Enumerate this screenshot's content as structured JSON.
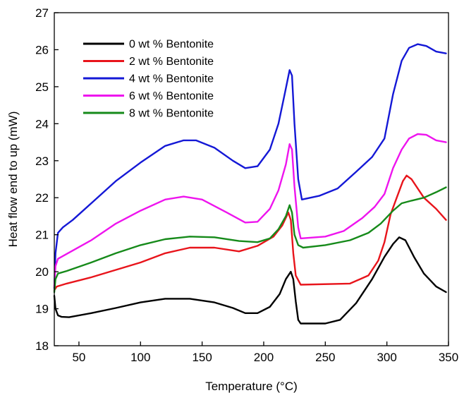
{
  "chart_data": {
    "type": "line",
    "xlabel": "Temperature (°C)",
    "ylabel": "Heat flow end to up (mW)",
    "xlim": [
      30,
      350
    ],
    "ylim": [
      18,
      27
    ],
    "xticks": [
      50,
      100,
      150,
      200,
      250,
      300,
      350
    ],
    "yticks": [
      18,
      19,
      20,
      21,
      22,
      23,
      24,
      25,
      26,
      27
    ],
    "grid": false,
    "legend_position": "top-left",
    "series": [
      {
        "name": "0 wt % Bentonite",
        "color": "#000000",
        "points": [
          [
            30,
            19.35
          ],
          [
            31,
            19.0
          ],
          [
            33,
            18.82
          ],
          [
            36,
            18.78
          ],
          [
            42,
            18.77
          ],
          [
            60,
            18.88
          ],
          [
            80,
            19.02
          ],
          [
            100,
            19.17
          ],
          [
            120,
            19.27
          ],
          [
            140,
            19.27
          ],
          [
            160,
            19.17
          ],
          [
            175,
            19.02
          ],
          [
            185,
            18.88
          ],
          [
            195,
            18.88
          ],
          [
            205,
            19.05
          ],
          [
            213,
            19.4
          ],
          [
            218,
            19.8
          ],
          [
            222,
            20.0
          ],
          [
            224,
            19.8
          ],
          [
            226,
            19.2
          ],
          [
            228,
            18.7
          ],
          [
            230,
            18.6
          ],
          [
            250,
            18.6
          ],
          [
            262,
            18.7
          ],
          [
            275,
            19.15
          ],
          [
            288,
            19.8
          ],
          [
            298,
            20.4
          ],
          [
            305,
            20.75
          ],
          [
            310,
            20.93
          ],
          [
            315,
            20.85
          ],
          [
            322,
            20.4
          ],
          [
            330,
            19.95
          ],
          [
            340,
            19.6
          ],
          [
            348,
            19.45
          ]
        ]
      },
      {
        "name": "2 wt % Bentonite",
        "color": "#e8141b",
        "points": [
          [
            30,
            19.5
          ],
          [
            32,
            19.6
          ],
          [
            40,
            19.68
          ],
          [
            60,
            19.85
          ],
          [
            80,
            20.05
          ],
          [
            100,
            20.25
          ],
          [
            120,
            20.5
          ],
          [
            140,
            20.65
          ],
          [
            160,
            20.65
          ],
          [
            180,
            20.55
          ],
          [
            195,
            20.7
          ],
          [
            208,
            20.95
          ],
          [
            215,
            21.25
          ],
          [
            220,
            21.6
          ],
          [
            222,
            21.4
          ],
          [
            224,
            20.5
          ],
          [
            226,
            19.9
          ],
          [
            230,
            19.65
          ],
          [
            270,
            19.68
          ],
          [
            285,
            19.9
          ],
          [
            293,
            20.3
          ],
          [
            298,
            20.8
          ],
          [
            303,
            21.55
          ],
          [
            308,
            22.0
          ],
          [
            313,
            22.45
          ],
          [
            316,
            22.6
          ],
          [
            320,
            22.5
          ],
          [
            330,
            22.0
          ],
          [
            340,
            21.7
          ],
          [
            348,
            21.4
          ]
        ]
      },
      {
        "name": "4 wt % Bentonite",
        "color": "#1418d6",
        "points": [
          [
            30,
            19.55
          ],
          [
            31,
            20.5
          ],
          [
            33,
            21.05
          ],
          [
            37,
            21.2
          ],
          [
            45,
            21.4
          ],
          [
            60,
            21.85
          ],
          [
            80,
            22.45
          ],
          [
            100,
            22.95
          ],
          [
            120,
            23.4
          ],
          [
            135,
            23.55
          ],
          [
            145,
            23.55
          ],
          [
            160,
            23.35
          ],
          [
            175,
            23.0
          ],
          [
            185,
            22.8
          ],
          [
            195,
            22.85
          ],
          [
            205,
            23.3
          ],
          [
            212,
            24.0
          ],
          [
            217,
            24.8
          ],
          [
            221,
            25.45
          ],
          [
            223,
            25.3
          ],
          [
            225,
            24.0
          ],
          [
            228,
            22.5
          ],
          [
            231,
            21.95
          ],
          [
            245,
            22.05
          ],
          [
            260,
            22.25
          ],
          [
            275,
            22.7
          ],
          [
            288,
            23.1
          ],
          [
            298,
            23.6
          ],
          [
            305,
            24.8
          ],
          [
            312,
            25.7
          ],
          [
            318,
            26.05
          ],
          [
            325,
            26.15
          ],
          [
            332,
            26.1
          ],
          [
            340,
            25.95
          ],
          [
            348,
            25.9
          ]
        ]
      },
      {
        "name": "6 wt % Bentonite",
        "color": "#ee14ee",
        "points": [
          [
            30,
            19.6
          ],
          [
            31,
            20.15
          ],
          [
            33,
            20.35
          ],
          [
            40,
            20.48
          ],
          [
            60,
            20.85
          ],
          [
            80,
            21.3
          ],
          [
            100,
            21.65
          ],
          [
            120,
            21.95
          ],
          [
            135,
            22.03
          ],
          [
            150,
            21.95
          ],
          [
            170,
            21.6
          ],
          [
            185,
            21.33
          ],
          [
            195,
            21.35
          ],
          [
            205,
            21.7
          ],
          [
            212,
            22.2
          ],
          [
            218,
            22.9
          ],
          [
            221,
            23.45
          ],
          [
            223,
            23.3
          ],
          [
            225,
            22.3
          ],
          [
            228,
            21.2
          ],
          [
            230,
            20.9
          ],
          [
            250,
            20.95
          ],
          [
            265,
            21.1
          ],
          [
            280,
            21.45
          ],
          [
            290,
            21.75
          ],
          [
            298,
            22.1
          ],
          [
            305,
            22.8
          ],
          [
            312,
            23.3
          ],
          [
            318,
            23.6
          ],
          [
            325,
            23.72
          ],
          [
            332,
            23.7
          ],
          [
            340,
            23.55
          ],
          [
            348,
            23.5
          ]
        ]
      },
      {
        "name": "8 wt % Bentonite",
        "color": "#168a1a",
        "points": [
          [
            30,
            19.45
          ],
          [
            31,
            19.8
          ],
          [
            33,
            19.95
          ],
          [
            40,
            20.02
          ],
          [
            60,
            20.25
          ],
          [
            80,
            20.5
          ],
          [
            100,
            20.72
          ],
          [
            120,
            20.88
          ],
          [
            140,
            20.95
          ],
          [
            160,
            20.93
          ],
          [
            180,
            20.83
          ],
          [
            195,
            20.8
          ],
          [
            205,
            20.9
          ],
          [
            212,
            21.15
          ],
          [
            218,
            21.5
          ],
          [
            221,
            21.8
          ],
          [
            223,
            21.6
          ],
          [
            225,
            21.0
          ],
          [
            228,
            20.72
          ],
          [
            232,
            20.65
          ],
          [
            250,
            20.72
          ],
          [
            270,
            20.85
          ],
          [
            285,
            21.05
          ],
          [
            295,
            21.3
          ],
          [
            305,
            21.65
          ],
          [
            312,
            21.85
          ],
          [
            320,
            21.92
          ],
          [
            330,
            22.0
          ],
          [
            340,
            22.15
          ],
          [
            348,
            22.28
          ]
        ]
      }
    ]
  }
}
